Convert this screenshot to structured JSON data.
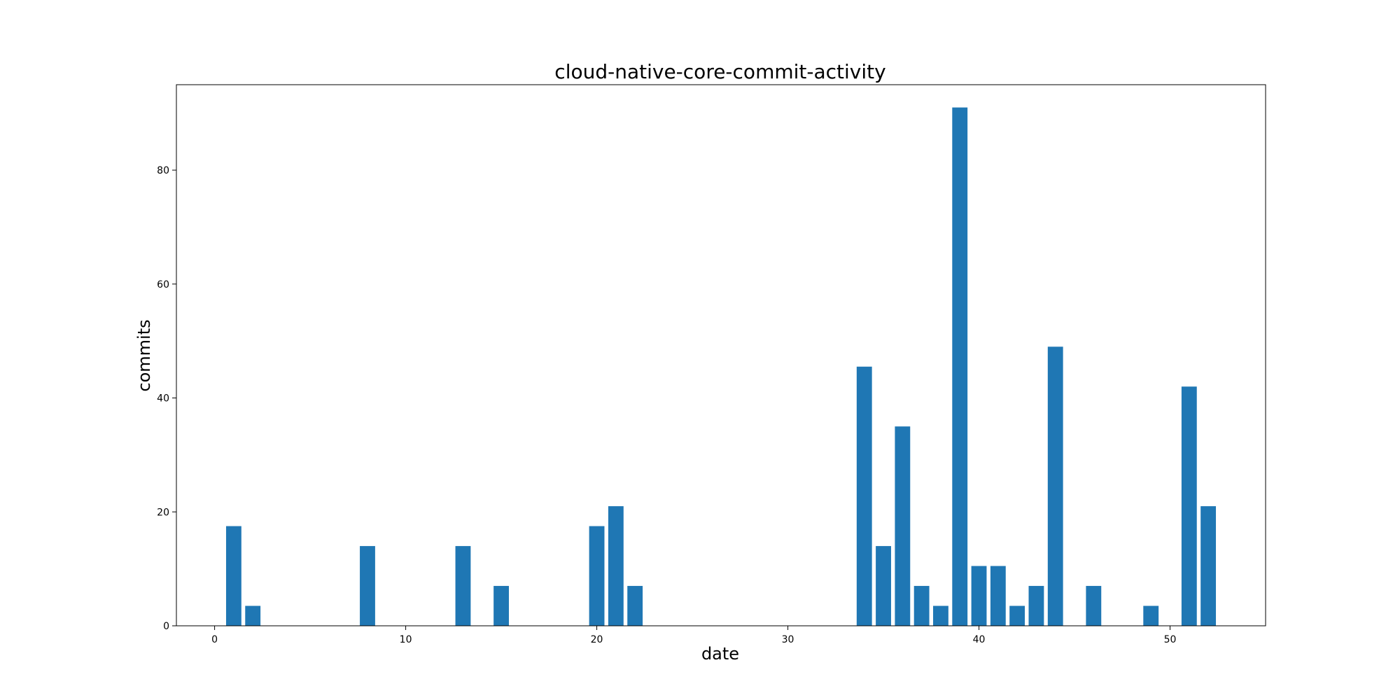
{
  "chart_data": {
    "type": "bar",
    "title": "cloud-native-core-commit-activity",
    "xlabel": "date",
    "ylabel": "commits",
    "xlim": [
      -2,
      55
    ],
    "ylim": [
      0,
      95
    ],
    "xticks": [
      0,
      10,
      20,
      30,
      40,
      50
    ],
    "yticks": [
      0,
      20,
      40,
      60,
      80
    ],
    "bar_color": "#1f77b4",
    "grid": false,
    "x": [
      0,
      1,
      2,
      3,
      4,
      5,
      6,
      7,
      8,
      9,
      10,
      11,
      12,
      13,
      14,
      15,
      16,
      17,
      18,
      19,
      20,
      21,
      22,
      23,
      24,
      25,
      26,
      27,
      28,
      29,
      30,
      31,
      32,
      33,
      34,
      35,
      36,
      37,
      38,
      39,
      40,
      41,
      42,
      43,
      44,
      45,
      46,
      47,
      48,
      49,
      50,
      51,
      52
    ],
    "values": [
      0,
      17.5,
      3.5,
      0,
      0,
      0,
      0,
      0,
      14,
      0,
      0,
      0,
      0,
      14,
      0,
      7,
      0,
      0,
      0,
      0,
      17.5,
      21,
      7,
      0,
      0,
      0,
      0,
      0,
      0,
      0,
      0,
      0,
      0,
      0,
      45.5,
      14,
      35,
      7,
      3.5,
      91,
      10.5,
      10.5,
      3.5,
      7,
      49,
      0,
      7,
      0,
      0,
      3.5,
      0,
      42,
      21
    ]
  }
}
